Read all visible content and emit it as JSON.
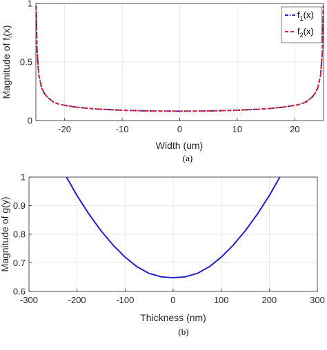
{
  "colors": {
    "f1": "#1f1fd6",
    "f2": "#e8202a",
    "g": "#1f1fd6",
    "grid": "#e3e3e3",
    "axis": "#262626"
  },
  "chart_data": [
    {
      "type": "line",
      "caption": "(a)",
      "xlabel": "Width (um)",
      "ylabel_main": "Magnitude of f",
      "ylabel_sub": "i",
      "ylabel_tail": "(x)",
      "xlim": [
        -25,
        25
      ],
      "ylim": [
        0,
        1
      ],
      "xticks": [
        -20,
        -10,
        0,
        10,
        20
      ],
      "xtick_labels": [
        "-20",
        "-10",
        "0",
        "10",
        "20"
      ],
      "yticks": [
        0,
        0.5,
        1
      ],
      "ytick_labels": [
        "0",
        "0.5",
        "1"
      ],
      "grid": true,
      "legend_position": "top-right",
      "series": [
        {
          "name_main": "f",
          "name_sub": "1",
          "name_tail": "(x)",
          "style": "dash-dot",
          "x": [
            -24.95,
            -24.8,
            -24.5,
            -24,
            -23.5,
            -23,
            -22,
            -21,
            -20,
            -18,
            -15,
            -10,
            -5,
            0,
            5,
            10,
            15,
            18,
            20,
            21,
            22,
            23,
            23.5,
            24,
            24.5,
            24.8,
            24.95
          ],
          "y": [
            0.98,
            0.6,
            0.39,
            0.28,
            0.23,
            0.2,
            0.16,
            0.14,
            0.13,
            0.115,
            0.1,
            0.088,
            0.082,
            0.08,
            0.082,
            0.088,
            0.1,
            0.115,
            0.13,
            0.14,
            0.16,
            0.2,
            0.23,
            0.28,
            0.39,
            0.6,
            0.98
          ]
        },
        {
          "name_main": "f",
          "name_sub": "2",
          "name_tail": "(x)",
          "style": "dashed",
          "x": [
            -24.95,
            -24.8,
            -24.5,
            -24,
            -23.5,
            -23,
            -22,
            -21,
            -20,
            -18,
            -15,
            -10,
            -5,
            0,
            5,
            10,
            15,
            18,
            20,
            21,
            22,
            23,
            23.5,
            24,
            24.5,
            24.8,
            24.95
          ],
          "y": [
            0.98,
            0.6,
            0.39,
            0.28,
            0.23,
            0.2,
            0.16,
            0.14,
            0.13,
            0.115,
            0.1,
            0.088,
            0.082,
            0.08,
            0.082,
            0.088,
            0.1,
            0.115,
            0.13,
            0.14,
            0.16,
            0.2,
            0.23,
            0.28,
            0.39,
            0.6,
            0.98
          ]
        }
      ]
    },
    {
      "type": "line",
      "caption": "(b)",
      "xlabel": "Thickness (nm)",
      "ylabel": "Magnitude of g(y)",
      "xlim": [
        -300,
        300
      ],
      "ylim": [
        0.6,
        1
      ],
      "xticks": [
        -300,
        -200,
        -100,
        0,
        100,
        200,
        300
      ],
      "xtick_labels": [
        "-300",
        "-200",
        "-100",
        "0",
        "100",
        "200",
        "300"
      ],
      "yticks": [
        0.6,
        0.7,
        0.8,
        0.9,
        1
      ],
      "ytick_labels": [
        "0.6",
        "0.7",
        "0.8",
        "0.9",
        "1"
      ],
      "grid": true,
      "series": [
        {
          "style": "solid",
          "x": [
            -222,
            -200,
            -175,
            -150,
            -125,
            -100,
            -75,
            -50,
            -25,
            0,
            25,
            50,
            75,
            100,
            125,
            150,
            175,
            200,
            222
          ],
          "y": [
            1.0,
            0.935,
            0.87,
            0.812,
            0.762,
            0.72,
            0.686,
            0.663,
            0.651,
            0.648,
            0.651,
            0.663,
            0.686,
            0.72,
            0.762,
            0.812,
            0.87,
            0.935,
            1.0
          ]
        }
      ]
    }
  ]
}
